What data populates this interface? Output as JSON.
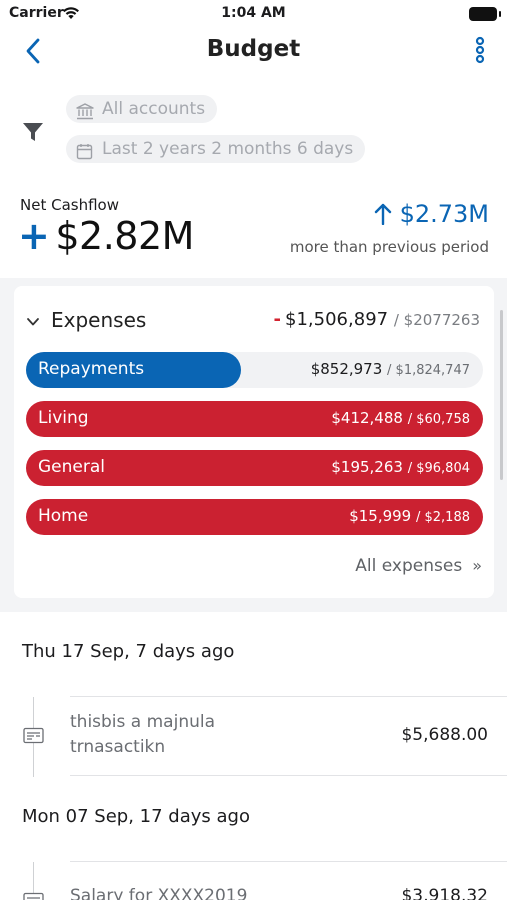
{
  "status_bar": {
    "carrier": "Carrier",
    "time": "1:04 AM"
  },
  "nav": {
    "title": "Budget"
  },
  "filters": {
    "accounts": "All accounts",
    "date_range": "Last 2 years 2 months 6 days"
  },
  "net_cashflow": {
    "label": "Net Cashflow",
    "sign": "+",
    "value": "$2.82M",
    "comparison_value": "$2.73M",
    "comparison_caption": "more than previous period"
  },
  "expenses": {
    "title": "Expenses",
    "sign": "-",
    "total": "$1,506,897",
    "limit": "/ $2077263",
    "categories": [
      {
        "name": "Repayments",
        "amount": "$852,973",
        "limit": "/ $1,824,747",
        "progress": 0.47,
        "over": false
      },
      {
        "name": "Living",
        "amount": "$412,488",
        "limit": "/ $60,758",
        "progress": 1.0,
        "over": true
      },
      {
        "name": "General",
        "amount": "$195,263",
        "limit": "/ $96,804",
        "progress": 1.0,
        "over": true
      },
      {
        "name": "Home",
        "amount": "$15,999",
        "limit": "/ $2,188",
        "progress": 1.0,
        "over": true
      }
    ],
    "all_link": "All expenses",
    "all_link_icon": "»"
  },
  "transactions": [
    {
      "date": "Thu 17 Sep, 7 days ago",
      "items": [
        {
          "description": "thisbis a majnula trnasactikn",
          "amount": "$5,688.00"
        }
      ]
    },
    {
      "date": "Mon 07 Sep, 17 days ago",
      "items": [
        {
          "description": "Salary for XXXX2019",
          "amount": "$3,918.32"
        }
      ]
    }
  ],
  "colors": {
    "accent": "#0a65b4",
    "over_budget": "#cb2131",
    "negative_sign": "#d32330"
  }
}
